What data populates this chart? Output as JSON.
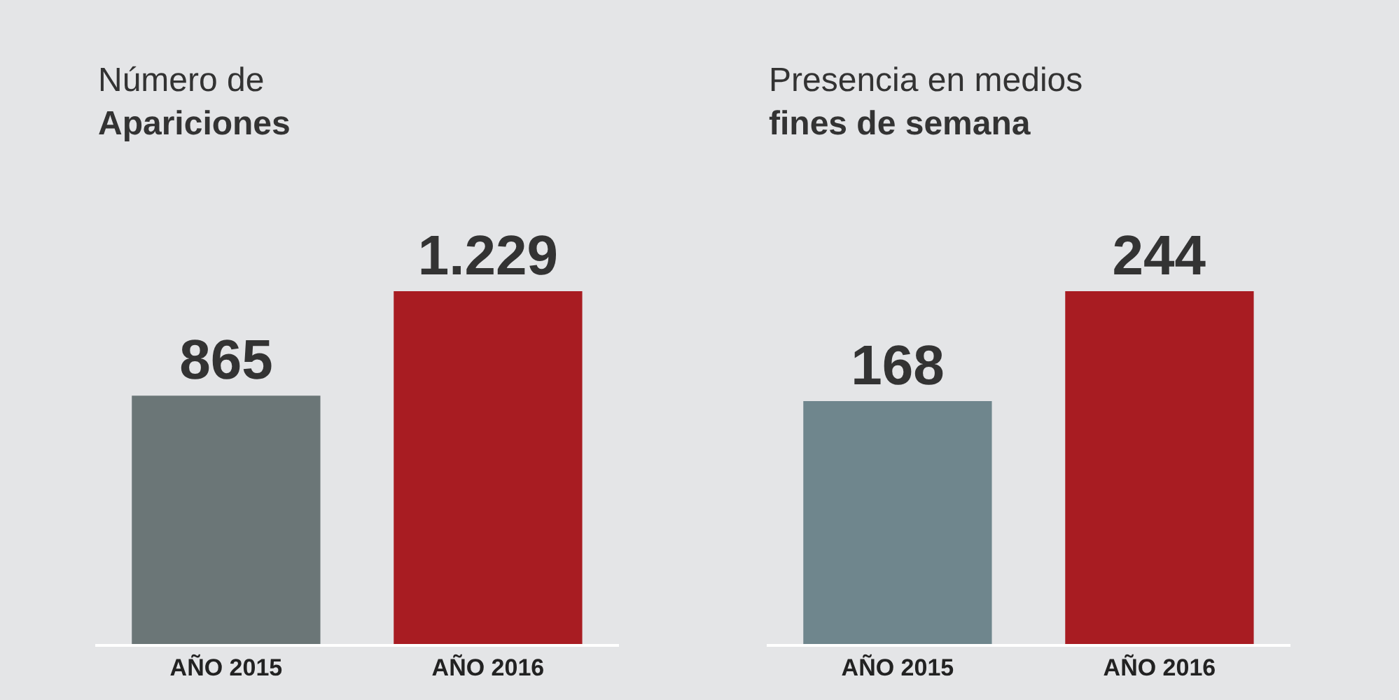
{
  "chart_data": [
    {
      "type": "bar",
      "title": "Número de",
      "subtitle": "Apariciones",
      "categories": [
        "AÑO 2015",
        "AÑO 2016"
      ],
      "values": [
        865,
        1229
      ],
      "colors": [
        "#6b7677",
        "#a81c22"
      ],
      "value_labels": [
        "865",
        "1.229"
      ],
      "grid": false,
      "tick_labels": "x"
    },
    {
      "type": "bar",
      "title": "Presencia en medios",
      "subtitle": "fines de semana",
      "categories": [
        "AÑO 2015",
        "AÑO 2016"
      ],
      "values": [
        168,
        244
      ],
      "colors": [
        "#6f868d",
        "#a81c22"
      ],
      "value_labels": [
        "168",
        "244"
      ],
      "grid": false,
      "tick_labels": "x"
    }
  ]
}
